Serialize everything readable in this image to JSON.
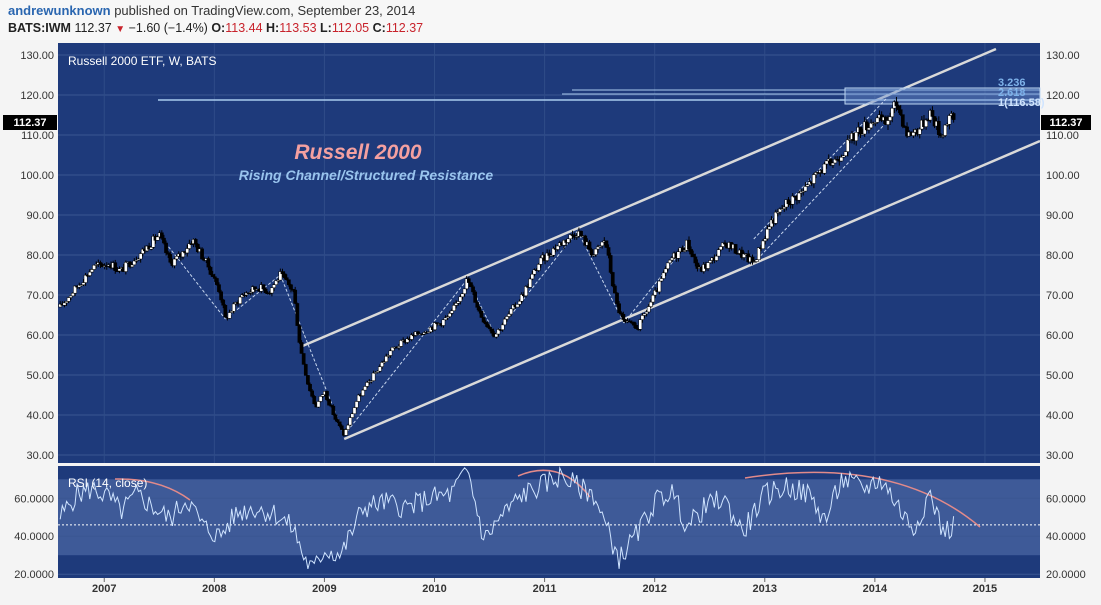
{
  "header": {
    "author": "andrewunknown",
    "published": "published on TradingView.com, September 23, 2014",
    "symbol": "BATS:IWM",
    "last": "112.37",
    "change": "−1.60 (−1.4%)",
    "open_label": "O:",
    "open": "113.44",
    "high_label": "H:",
    "high": "113.53",
    "low_label": "L:",
    "low": "112.05",
    "close_label": "C:",
    "close": "112.37"
  },
  "chart_data": [
    {
      "type": "candlestick",
      "pane_label": "Russell 2000 ETF, W, BATS",
      "title": "Russell 2000",
      "subtitle": "Rising Channel/Structured Resistance",
      "x_tick_labels": [
        "2007",
        "2008",
        "2009",
        "2010",
        "2011",
        "2012",
        "2013",
        "2014",
        "2015"
      ],
      "y_tick_labels": [
        "30.00",
        "40.00",
        "50.00",
        "60.00",
        "70.00",
        "80.00",
        "90.00",
        "100.00",
        "110.00",
        "120.00",
        "130.00"
      ],
      "ylim": [
        28,
        133
      ],
      "xlim": [
        2006.58,
        2015.5
      ],
      "last_price_label": "112.37",
      "price_path": [
        {
          "x": 2006.6,
          "y": 67
        },
        {
          "x": 2006.75,
          "y": 72
        },
        {
          "x": 2006.9,
          "y": 77
        },
        {
          "x": 2007.05,
          "y": 78
        },
        {
          "x": 2007.15,
          "y": 76
        },
        {
          "x": 2007.35,
          "y": 81
        },
        {
          "x": 2007.5,
          "y": 85
        },
        {
          "x": 2007.6,
          "y": 78
        },
        {
          "x": 2007.7,
          "y": 80
        },
        {
          "x": 2007.8,
          "y": 84
        },
        {
          "x": 2007.95,
          "y": 77
        },
        {
          "x": 2008.05,
          "y": 71
        },
        {
          "x": 2008.1,
          "y": 64
        },
        {
          "x": 2008.25,
          "y": 70
        },
        {
          "x": 2008.4,
          "y": 72
        },
        {
          "x": 2008.5,
          "y": 71
        },
        {
          "x": 2008.6,
          "y": 75
        },
        {
          "x": 2008.72,
          "y": 71
        },
        {
          "x": 2008.78,
          "y": 57
        },
        {
          "x": 2008.85,
          "y": 48
        },
        {
          "x": 2008.92,
          "y": 42
        },
        {
          "x": 2009.0,
          "y": 46
        },
        {
          "x": 2009.1,
          "y": 39
        },
        {
          "x": 2009.18,
          "y": 35
        },
        {
          "x": 2009.3,
          "y": 44
        },
        {
          "x": 2009.45,
          "y": 50
        },
        {
          "x": 2009.6,
          "y": 56
        },
        {
          "x": 2009.75,
          "y": 59
        },
        {
          "x": 2009.9,
          "y": 61
        },
        {
          "x": 2010.05,
          "y": 63
        },
        {
          "x": 2010.15,
          "y": 65
        },
        {
          "x": 2010.3,
          "y": 74
        },
        {
          "x": 2010.42,
          "y": 65
        },
        {
          "x": 2010.55,
          "y": 60
        },
        {
          "x": 2010.65,
          "y": 64
        },
        {
          "x": 2010.8,
          "y": 70
        },
        {
          "x": 2010.95,
          "y": 78
        },
        {
          "x": 2011.1,
          "y": 82
        },
        {
          "x": 2011.3,
          "y": 86
        },
        {
          "x": 2011.45,
          "y": 80
        },
        {
          "x": 2011.55,
          "y": 84
        },
        {
          "x": 2011.65,
          "y": 68
        },
        {
          "x": 2011.72,
          "y": 63
        },
        {
          "x": 2011.85,
          "y": 62
        },
        {
          "x": 2012.0,
          "y": 70
        },
        {
          "x": 2012.15,
          "y": 79
        },
        {
          "x": 2012.3,
          "y": 83
        },
        {
          "x": 2012.4,
          "y": 76
        },
        {
          "x": 2012.5,
          "y": 78
        },
        {
          "x": 2012.65,
          "y": 83
        },
        {
          "x": 2012.8,
          "y": 80
        },
        {
          "x": 2012.9,
          "y": 78
        },
        {
          "x": 2013.05,
          "y": 88
        },
        {
          "x": 2013.2,
          "y": 93
        },
        {
          "x": 2013.35,
          "y": 96
        },
        {
          "x": 2013.5,
          "y": 101
        },
        {
          "x": 2013.65,
          "y": 104
        },
        {
          "x": 2013.85,
          "y": 111
        },
        {
          "x": 2014.0,
          "y": 114
        },
        {
          "x": 2014.1,
          "y": 113
        },
        {
          "x": 2014.2,
          "y": 118
        },
        {
          "x": 2014.3,
          "y": 110
        },
        {
          "x": 2014.42,
          "y": 112
        },
        {
          "x": 2014.5,
          "y": 116
        },
        {
          "x": 2014.6,
          "y": 110
        },
        {
          "x": 2014.68,
          "y": 115
        },
        {
          "x": 2014.73,
          "y": 112.37
        }
      ],
      "channel_lines": [
        {
          "x1": 2008.78,
          "y1": 57,
          "x2": 2015.1,
          "y2": 131.5
        },
        {
          "x1": 2009.18,
          "y1": 34,
          "x2": 2015.5,
          "y2": 108.5
        }
      ],
      "fib_labels": [
        "3.236",
        "2.618",
        "1(116.58)"
      ]
    },
    {
      "type": "line",
      "pane_label": "RSI (14, close)",
      "y_tick_labels": [
        "20.0000",
        "40.0000",
        "60.0000"
      ],
      "ylim": [
        18,
        77
      ],
      "band": [
        30,
        70
      ],
      "midline": 46,
      "rsi_path": [
        {
          "x": 2006.6,
          "y": 50
        },
        {
          "x": 2006.75,
          "y": 62
        },
        {
          "x": 2006.9,
          "y": 65
        },
        {
          "x": 2007.05,
          "y": 60
        },
        {
          "x": 2007.15,
          "y": 53
        },
        {
          "x": 2007.3,
          "y": 62
        },
        {
          "x": 2007.45,
          "y": 55
        },
        {
          "x": 2007.6,
          "y": 49
        },
        {
          "x": 2007.75,
          "y": 60
        },
        {
          "x": 2007.9,
          "y": 45
        },
        {
          "x": 2008.05,
          "y": 40
        },
        {
          "x": 2008.2,
          "y": 52
        },
        {
          "x": 2008.35,
          "y": 55
        },
        {
          "x": 2008.55,
          "y": 52
        },
        {
          "x": 2008.72,
          "y": 44
        },
        {
          "x": 2008.82,
          "y": 28
        },
        {
          "x": 2008.9,
          "y": 22
        },
        {
          "x": 2009.0,
          "y": 33
        },
        {
          "x": 2009.15,
          "y": 30
        },
        {
          "x": 2009.35,
          "y": 55
        },
        {
          "x": 2009.55,
          "y": 58
        },
        {
          "x": 2009.75,
          "y": 55
        },
        {
          "x": 2009.95,
          "y": 60
        },
        {
          "x": 2010.15,
          "y": 62
        },
        {
          "x": 2010.3,
          "y": 75
        },
        {
          "x": 2010.45,
          "y": 38
        },
        {
          "x": 2010.6,
          "y": 50
        },
        {
          "x": 2010.8,
          "y": 62
        },
        {
          "x": 2010.95,
          "y": 66
        },
        {
          "x": 2011.15,
          "y": 72
        },
        {
          "x": 2011.3,
          "y": 66
        },
        {
          "x": 2011.45,
          "y": 62
        },
        {
          "x": 2011.55,
          "y": 46
        },
        {
          "x": 2011.68,
          "y": 28
        },
        {
          "x": 2011.85,
          "y": 42
        },
        {
          "x": 2012.0,
          "y": 58
        },
        {
          "x": 2012.15,
          "y": 64
        },
        {
          "x": 2012.3,
          "y": 45
        },
        {
          "x": 2012.45,
          "y": 55
        },
        {
          "x": 2012.62,
          "y": 60
        },
        {
          "x": 2012.8,
          "y": 42
        },
        {
          "x": 2013.0,
          "y": 62
        },
        {
          "x": 2013.2,
          "y": 66
        },
        {
          "x": 2013.4,
          "y": 62
        },
        {
          "x": 2013.55,
          "y": 48
        },
        {
          "x": 2013.7,
          "y": 70
        },
        {
          "x": 2013.9,
          "y": 65
        },
        {
          "x": 2014.05,
          "y": 70
        },
        {
          "x": 2014.15,
          "y": 62
        },
        {
          "x": 2014.25,
          "y": 52
        },
        {
          "x": 2014.35,
          "y": 44
        },
        {
          "x": 2014.5,
          "y": 63
        },
        {
          "x": 2014.62,
          "y": 42
        },
        {
          "x": 2014.73,
          "y": 46
        }
      ]
    }
  ],
  "colors": {
    "pane_background": "#1e3a7b",
    "candle_up": "#ffffff",
    "candle_down": "#000000",
    "channel_line": "#d9d9d9",
    "title_text": "#f4a0a0",
    "subtitle_text": "#99c4ee",
    "rsi_line": "#cfe4ff",
    "rsi_resistance_arc": "#e28a8a"
  }
}
